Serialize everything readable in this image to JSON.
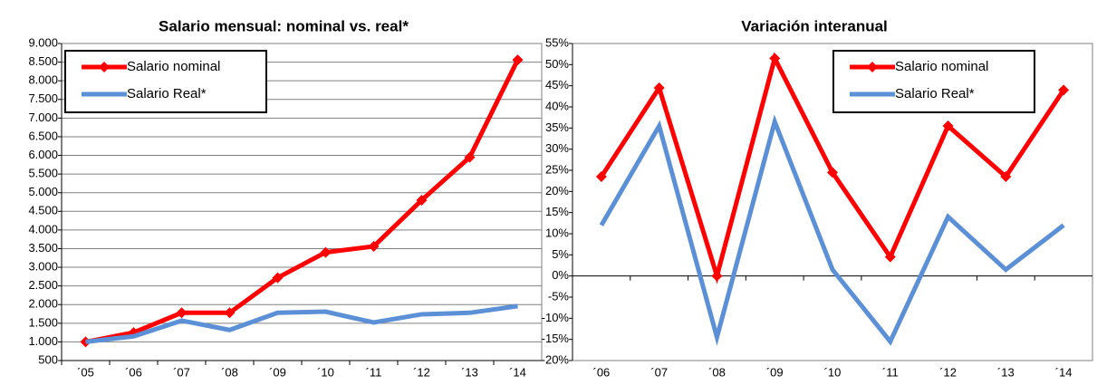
{
  "chart_data": [
    {
      "type": "line",
      "title": "Salario mensual: nominal vs. real*",
      "categories": [
        "´05",
        "´06",
        "´07",
        "´08",
        "´09",
        "´10",
        "´11",
        "´12",
        "´13",
        "´14"
      ],
      "series": [
        {
          "name": "Salario nominal",
          "color": "#ff0000",
          "marker": "diamond",
          "values": [
            1000,
            1250,
            1780,
            1780,
            2720,
            3400,
            3560,
            4800,
            5950,
            8560
          ]
        },
        {
          "name": "Salario Real*",
          "color": "#5b8fd6",
          "marker": "none",
          "values": [
            1000,
            1150,
            1570,
            1320,
            1780,
            1810,
            1520,
            1740,
            1780,
            1960
          ]
        }
      ],
      "ylim": [
        500,
        9000
      ],
      "yticks": [
        500,
        {
          "value": 1000,
          "label": "1.000"
        },
        {
          "value": 1500,
          "label": "1.500"
        },
        {
          "value": 2000,
          "label": "2.000"
        },
        {
          "value": 2500,
          "label": "2.500"
        },
        {
          "value": 3000,
          "label": "3.000"
        },
        {
          "value": 3500,
          "label": "3.500"
        },
        {
          "value": 4000,
          "label": "4.000"
        },
        {
          "value": 4500,
          "label": "4.500"
        },
        {
          "value": 5000,
          "label": "5.000"
        },
        {
          "value": 5500,
          "label": "5.500"
        },
        {
          "value": 6000,
          "label": "6.000"
        },
        {
          "value": 6500,
          "label": "6.500"
        },
        {
          "value": 7000,
          "label": "7.000"
        },
        {
          "value": 7500,
          "label": "7.500"
        },
        {
          "value": 8000,
          "label": "8.000"
        },
        {
          "value": 8500,
          "label": "8.500"
        },
        {
          "value": 9000,
          "label": "9.000"
        }
      ],
      "grid": true,
      "legend": "upper left"
    },
    {
      "type": "line",
      "title": "Variación interanual",
      "categories": [
        "´06",
        "´07",
        "´08",
        "´09",
        "´10",
        "´11",
        "´12",
        "´13",
        "´14"
      ],
      "series": [
        {
          "name": "Salario nominal",
          "color": "#ff0000",
          "marker": "diamond",
          "values": [
            23.5,
            44.5,
            0,
            51.5,
            24.5,
            4.5,
            35.5,
            23.5,
            44
          ]
        },
        {
          "name": "Salario Real*",
          "color": "#5b8fd6",
          "marker": "none",
          "values": [
            12,
            35.5,
            -14.5,
            36.5,
            1.5,
            -15.5,
            14,
            1.5,
            12
          ]
        }
      ],
      "ylim": [
        -20,
        55
      ],
      "yticks": [
        {
          "value": -20,
          "label": "-20%"
        },
        {
          "value": -15,
          "label": "-15%"
        },
        {
          "value": -10,
          "label": "-10%"
        },
        {
          "value": -5,
          "label": "-5%"
        },
        {
          "value": 0,
          "label": "0%"
        },
        {
          "value": 5,
          "label": "5%"
        },
        {
          "value": 10,
          "label": "10%"
        },
        {
          "value": 15,
          "label": "15%"
        },
        {
          "value": 20,
          "label": "20%"
        },
        {
          "value": 25,
          "label": "25%"
        },
        {
          "value": 30,
          "label": "30%"
        },
        {
          "value": 35,
          "label": "35%"
        },
        {
          "value": 40,
          "label": "40%"
        },
        {
          "value": 45,
          "label": "45%"
        },
        {
          "value": 50,
          "label": "50%"
        },
        {
          "value": 55,
          "label": "55%"
        }
      ],
      "grid": false,
      "legend": "upper right"
    }
  ]
}
